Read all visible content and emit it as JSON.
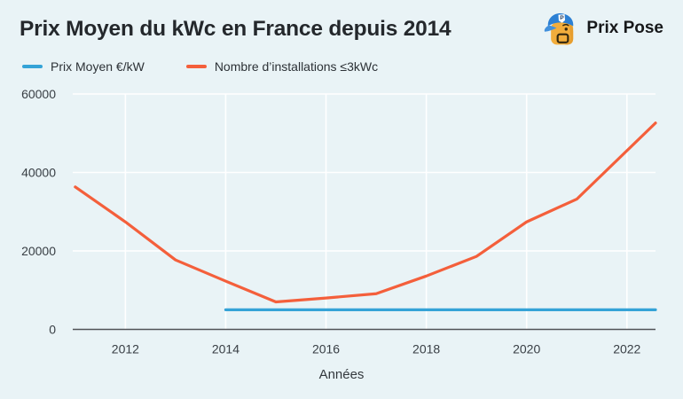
{
  "header": {
    "title": "Prix Moyen du kWc en France depuis 2014",
    "brand": "Prix Pose"
  },
  "legend": {
    "items": [
      {
        "label": "Prix Moyen €/kW",
        "color": "#35a3d7"
      },
      {
        "label": "Nombre d’installations ≤3kWc",
        "color": "#f45f3b"
      }
    ]
  },
  "chart_data": {
    "type": "line",
    "title": "Prix Moyen du kWc en France depuis 2014",
    "xlabel": "Années",
    "ylabel": "",
    "xlim": [
      2010.95,
      2022.57
    ],
    "ylim": [
      0,
      60000
    ],
    "xticks": [
      2012,
      2014,
      2016,
      2018,
      2020,
      2022
    ],
    "yticks": [
      0,
      20000,
      40000,
      60000
    ],
    "grid": true,
    "legend_position": "top-left",
    "series": [
      {
        "name": "Prix Moyen €/kW",
        "color": "#35a3d7",
        "x": [
          2014,
          2022.57
        ],
        "y": [
          5000,
          5000
        ]
      },
      {
        "name": "Nombre d’installations ≤3kWc",
        "color": "#f45f3b",
        "x": [
          2011,
          2012,
          2013,
          2014,
          2015,
          2016,
          2017,
          2018,
          2019,
          2020,
          2021,
          2022.57
        ],
        "y": [
          36300,
          27400,
          17700,
          12300,
          7000,
          8000,
          9100,
          13600,
          18600,
          27400,
          33200,
          52600
        ]
      }
    ]
  },
  "colors": {
    "background": "#e9f3f6",
    "gridline": "#ffffff",
    "axis": "#505357",
    "text": "#383e44"
  }
}
